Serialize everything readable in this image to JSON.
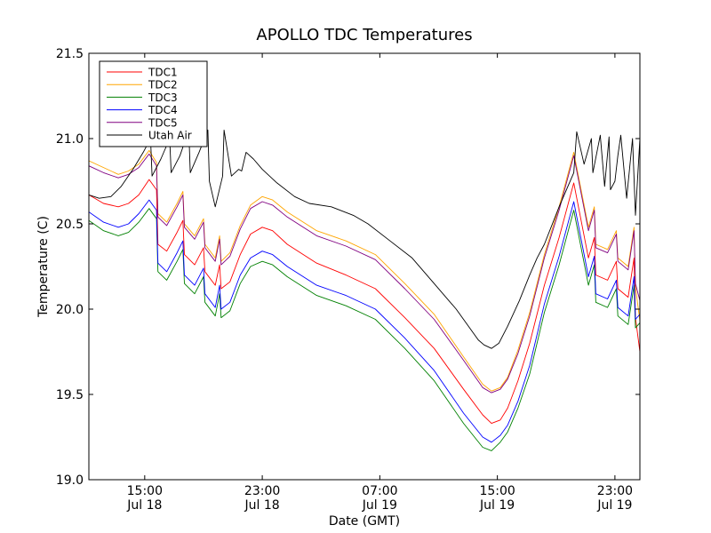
{
  "chart_data": {
    "type": "line",
    "title": "APOLLO TDC Temperatures",
    "xlabel": "Date (GMT)",
    "ylabel": "Temperature (C)",
    "x_unit": "hours since Jul 18 10:00 GMT",
    "xlim": [
      0,
      37.5
    ],
    "ylim": [
      19.0,
      21.5
    ],
    "y_ticks": [
      19.0,
      19.5,
      20.0,
      20.5,
      21.0,
      21.5
    ],
    "y_tick_labels": [
      "19.0",
      "19.5",
      "20.0",
      "20.5",
      "21.0",
      "21.5"
    ],
    "x_ticks": [
      {
        "x": 3.8,
        "time": "15:00",
        "date": "Jul 18"
      },
      {
        "x": 11.8,
        "time": "23:00",
        "date": "Jul 18"
      },
      {
        "x": 19.8,
        "time": "07:00",
        "date": "Jul 19"
      },
      {
        "x": 27.8,
        "time": "15:00",
        "date": "Jul 19"
      },
      {
        "x": 35.8,
        "time": "23:00",
        "date": "Jul 19"
      }
    ],
    "legend_position": "top-left",
    "grid": false,
    "series": [
      {
        "name": "TDC1",
        "color": "#ff0000",
        "x": [
          0,
          1,
          2,
          2.7,
          3.4,
          4.1,
          4.6,
          4.7,
          5.3,
          6.0,
          6.4,
          6.5,
          7.2,
          7.8,
          7.9,
          8.6,
          8.9,
          9.0,
          9.6,
          10.3,
          11.0,
          11.8,
          12.5,
          13.5,
          15.5,
          17.5,
          19.5,
          21.5,
          23.5,
          25.5,
          26.8,
          27.4,
          28.0,
          28.5,
          29.2,
          30.0,
          31.0,
          32.0,
          33.0,
          34.0,
          34.4,
          34.5,
          35.3,
          35.9,
          36.0,
          36.7,
          37.1,
          37.2,
          37.5
        ],
        "y": [
          20.67,
          20.62,
          20.6,
          20.62,
          20.67,
          20.76,
          20.7,
          20.38,
          20.34,
          20.45,
          20.52,
          20.32,
          20.26,
          20.36,
          20.22,
          20.14,
          20.26,
          20.12,
          20.16,
          20.32,
          20.44,
          20.48,
          20.46,
          20.38,
          20.27,
          20.2,
          20.12,
          19.95,
          19.77,
          19.53,
          19.38,
          19.33,
          19.35,
          19.42,
          19.58,
          19.8,
          20.14,
          20.42,
          20.74,
          20.3,
          20.42,
          20.2,
          20.17,
          20.28,
          20.12,
          20.07,
          20.3,
          19.95,
          19.75
        ]
      },
      {
        "name": "TDC2",
        "color": "#ffa500",
        "x": [
          0,
          1,
          2,
          2.7,
          3.4,
          4.1,
          4.6,
          4.7,
          5.3,
          6.0,
          6.4,
          6.5,
          7.2,
          7.8,
          7.9,
          8.6,
          8.9,
          9.0,
          9.6,
          10.3,
          11.0,
          11.8,
          12.5,
          13.5,
          15.5,
          17.5,
          19.5,
          21.5,
          23.5,
          25.5,
          26.8,
          27.4,
          28.0,
          28.5,
          29.2,
          30.0,
          31.0,
          32.0,
          33.0,
          34.0,
          34.4,
          34.5,
          35.3,
          35.9,
          36.0,
          36.7,
          37.1,
          37.2,
          37.5
        ],
        "y": [
          20.87,
          20.83,
          20.79,
          20.81,
          20.85,
          20.93,
          20.86,
          20.56,
          20.51,
          20.62,
          20.69,
          20.5,
          20.43,
          20.53,
          20.38,
          20.3,
          20.43,
          20.28,
          20.33,
          20.49,
          20.61,
          20.66,
          20.64,
          20.57,
          20.46,
          20.4,
          20.32,
          20.15,
          19.97,
          19.72,
          19.56,
          19.52,
          19.54,
          19.6,
          19.76,
          19.98,
          20.32,
          20.6,
          20.92,
          20.48,
          20.6,
          20.38,
          20.35,
          20.46,
          20.3,
          20.25,
          20.48,
          20.13,
          19.93
        ]
      },
      {
        "name": "TDC3",
        "color": "#008000",
        "x": [
          0,
          1,
          2,
          2.7,
          3.4,
          4.1,
          4.6,
          4.7,
          5.3,
          6.0,
          6.4,
          6.5,
          7.2,
          7.8,
          7.9,
          8.6,
          8.9,
          9.0,
          9.6,
          10.3,
          11.0,
          11.8,
          12.5,
          13.5,
          15.5,
          17.5,
          19.5,
          21.5,
          23.5,
          25.5,
          26.8,
          27.4,
          28.0,
          28.5,
          29.2,
          30.0,
          31.0,
          32.0,
          33.0,
          34.0,
          34.4,
          34.5,
          35.3,
          35.9,
          36.0,
          36.7,
          37.1,
          37.2,
          37.5
        ],
        "y": [
          20.52,
          20.46,
          20.43,
          20.45,
          20.51,
          20.59,
          20.53,
          20.22,
          20.17,
          20.28,
          20.35,
          20.15,
          20.09,
          20.19,
          20.04,
          19.96,
          20.09,
          19.95,
          19.99,
          20.15,
          20.25,
          20.28,
          20.26,
          20.19,
          20.08,
          20.02,
          19.94,
          19.77,
          19.58,
          19.33,
          19.19,
          19.17,
          19.22,
          19.28,
          19.42,
          19.62,
          19.98,
          20.26,
          20.58,
          20.14,
          20.26,
          20.04,
          20.01,
          20.12,
          19.96,
          19.91,
          20.14,
          19.89,
          19.92
        ]
      },
      {
        "name": "TDC4",
        "color": "#0000ff",
        "x": [
          0,
          1,
          2,
          2.7,
          3.4,
          4.1,
          4.6,
          4.7,
          5.3,
          6.0,
          6.4,
          6.5,
          7.2,
          7.8,
          7.9,
          8.6,
          8.9,
          9.0,
          9.6,
          10.3,
          11.0,
          11.8,
          12.5,
          13.5,
          15.5,
          17.5,
          19.5,
          21.5,
          23.5,
          25.5,
          26.8,
          27.4,
          28.0,
          28.5,
          29.2,
          30.0,
          31.0,
          32.0,
          33.0,
          34.0,
          34.4,
          34.5,
          35.3,
          35.9,
          36.0,
          36.7,
          37.1,
          37.2,
          37.5
        ],
        "y": [
          20.57,
          20.51,
          20.48,
          20.5,
          20.56,
          20.64,
          20.58,
          20.27,
          20.22,
          20.33,
          20.4,
          20.2,
          20.14,
          20.24,
          20.09,
          20.01,
          20.14,
          20.0,
          20.04,
          20.2,
          20.3,
          20.34,
          20.32,
          20.25,
          20.14,
          20.08,
          20.0,
          19.83,
          19.64,
          19.39,
          19.25,
          19.22,
          19.26,
          19.32,
          19.46,
          19.67,
          20.03,
          20.31,
          20.63,
          20.19,
          20.31,
          20.09,
          20.06,
          20.17,
          20.01,
          19.96,
          20.19,
          19.94,
          19.97
        ]
      },
      {
        "name": "TDC5",
        "color": "#800080",
        "x": [
          0,
          1,
          2,
          2.7,
          3.4,
          4.1,
          4.6,
          4.7,
          5.3,
          6.0,
          6.4,
          6.5,
          7.2,
          7.8,
          7.9,
          8.6,
          8.9,
          9.0,
          9.6,
          10.3,
          11.0,
          11.8,
          12.5,
          13.5,
          15.5,
          17.5,
          19.5,
          21.5,
          23.5,
          25.5,
          26.8,
          27.4,
          28.0,
          28.5,
          29.2,
          30.0,
          31.0,
          32.0,
          33.0,
          34.0,
          34.4,
          34.5,
          35.3,
          35.9,
          36.0,
          36.7,
          37.1,
          37.2,
          37.5
        ],
        "y": [
          20.84,
          20.8,
          20.77,
          20.79,
          20.83,
          20.91,
          20.84,
          20.54,
          20.49,
          20.6,
          20.67,
          20.48,
          20.41,
          20.51,
          20.36,
          20.28,
          20.41,
          20.26,
          20.31,
          20.47,
          20.59,
          20.63,
          20.61,
          20.54,
          20.43,
          20.37,
          20.29,
          20.12,
          19.94,
          19.7,
          19.54,
          19.51,
          19.53,
          19.59,
          19.74,
          19.96,
          20.3,
          20.58,
          20.9,
          20.46,
          20.58,
          20.36,
          20.33,
          20.44,
          20.28,
          20.23,
          20.46,
          20.15,
          20.05
        ]
      },
      {
        "name": "Utah Air",
        "color": "#000000",
        "x": [
          0,
          0.7,
          1.5,
          2.2,
          3.0,
          3.7,
          4.2,
          4.3,
          4.9,
          5.5,
          5.6,
          6.2,
          6.8,
          6.9,
          7.5,
          8.1,
          8.2,
          8.6,
          9.1,
          9.2,
          9.7,
          10.2,
          10.4,
          10.7,
          11.2,
          11.8,
          12.8,
          14.0,
          15.0,
          16.5,
          18.0,
          19.0,
          20.5,
          22.0,
          23.5,
          25.0,
          26.5,
          26.9,
          27.4,
          27.9,
          28.5,
          29.3,
          30.0,
          30.5,
          31.0,
          32.0,
          33.0,
          33.2,
          33.7,
          34.2,
          34.3,
          34.8,
          35.1,
          35.4,
          35.5,
          35.8,
          36.0,
          36.2,
          36.6,
          37.0,
          37.2,
          37.5
        ],
        "y": [
          20.67,
          20.65,
          20.66,
          20.72,
          20.82,
          20.92,
          21.0,
          20.78,
          20.88,
          21.0,
          20.8,
          20.9,
          21.05,
          20.8,
          20.92,
          21.05,
          20.75,
          20.6,
          20.78,
          21.05,
          20.78,
          20.82,
          20.81,
          20.92,
          20.88,
          20.82,
          20.74,
          20.66,
          20.62,
          20.6,
          20.55,
          20.5,
          20.4,
          20.3,
          20.15,
          20.0,
          19.82,
          19.79,
          19.77,
          19.8,
          19.9,
          20.05,
          20.2,
          20.3,
          20.38,
          20.6,
          20.8,
          21.04,
          20.85,
          21.0,
          20.8,
          21.02,
          20.72,
          21.01,
          20.7,
          20.75,
          20.9,
          21.02,
          20.65,
          21.0,
          20.55,
          21.0
        ]
      }
    ]
  }
}
